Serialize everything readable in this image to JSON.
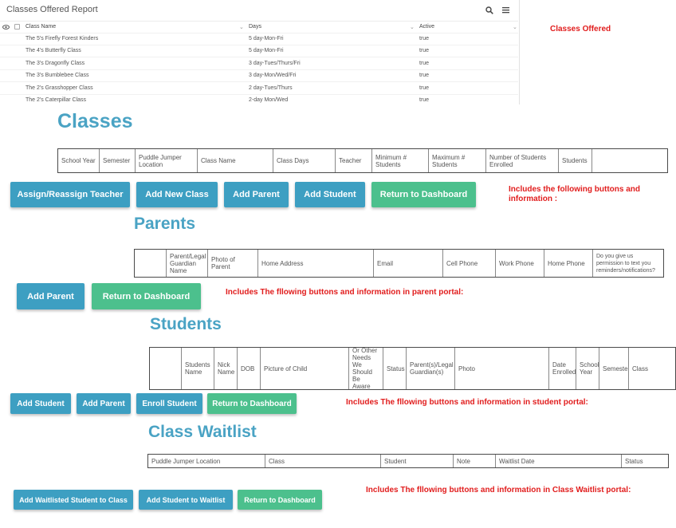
{
  "report": {
    "title": "Classes Offered Report",
    "icons": {
      "search": "search-icon",
      "menu": "menu-icon",
      "visibility": "eye-icon"
    },
    "columns": [
      "Class Name",
      "Days",
      "Active"
    ],
    "rows": [
      [
        "The 5's Firefly Forest Kinders",
        "5 day-Mon-Fri",
        "true"
      ],
      [
        "The 4's Butterfly Class",
        "5 day-Mon-Fri",
        "true"
      ],
      [
        "The 3's Dragonfly Class",
        "3 day-Tues/Thurs/Fri",
        "true"
      ],
      [
        "The 3's Bumblebee Class",
        "3 day-Mon/Wed/Fri",
        "true"
      ],
      [
        "The 2's Grasshopper Class",
        "2 day-Tues/Thurs",
        "true"
      ],
      [
        "The 2's Caterpillar Class",
        "2-day Mon/Wed",
        "true"
      ]
    ]
  },
  "notes": {
    "classes_offered": "Classes Offered",
    "classes": "Includes the following buttons and information :",
    "parents": "Includes The fllowing buttons and information in parent portal:",
    "students": "Includes The fllowing buttons and information in student portal:",
    "waitlist": "Includes The fllowing buttons and information in Class Waitlist portal:"
  },
  "classes": {
    "title": "Classes",
    "columns": [
      "School Year",
      "Semester",
      "Puddle Jumper Location",
      "Class Name",
      "Class Days",
      "Teacher",
      "Minimum # Students",
      "Maximum # Students",
      "Number of Students Enrolled",
      "Students",
      ""
    ],
    "buttons": [
      "Assign/Reassign Teacher",
      "Add New Class",
      "Add Parent",
      "Add Student",
      "Return to Dashboard"
    ]
  },
  "parents": {
    "title": "Parents",
    "columns": [
      "",
      "Parent/Legal Guardian Name",
      "Photo of Parent",
      "Home Address",
      "Email",
      "Cell Phone",
      "Work Phone",
      "Home Phone",
      "Do you give us permission to text you reminders/notifications?"
    ],
    "buttons": [
      "Add Parent",
      "Return to Dashboard"
    ]
  },
  "students": {
    "title": "Students",
    "columns": [
      "",
      "Students Name",
      "Nick Name",
      "DOB",
      "Picture of Child",
      "Allergies Or Other Needs We Should Be Aware Of?",
      "Status",
      "Parent(s)/Legal Guardian(s)",
      "Photo",
      "Date Enrolled",
      "School Year",
      "Semester",
      "Class"
    ],
    "buttons": [
      "Add Student",
      "Add Parent",
      "Enroll Student",
      "Return to Dashboard"
    ]
  },
  "waitlist": {
    "title": "Class Waitlist",
    "columns": [
      "Puddle Jumper Location",
      "Class",
      "Student",
      "Note",
      "Waitlist Date",
      "Status"
    ],
    "buttons": [
      "Add Waitlisted Student to Class",
      "Add Student to Waitlist",
      "Return to Dashboard"
    ]
  }
}
